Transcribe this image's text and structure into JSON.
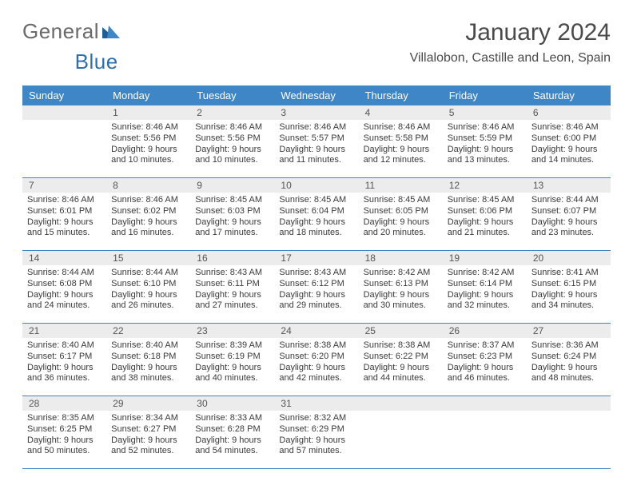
{
  "logo": {
    "word1": "General",
    "word2": "Blue"
  },
  "header": {
    "month_title": "January 2024",
    "location": "Villalobon, Castille and Leon, Spain"
  },
  "style": {
    "header_bg": "#3f86c6",
    "header_fg": "#ffffff",
    "daynum_bg": "#ececec",
    "rule_color": "#3f86c6",
    "logo_gray": "#6a6a6a",
    "logo_blue": "#2f6fab",
    "text_color": "#3a3a3a",
    "page_bg": "#ffffff"
  },
  "weekdays": [
    "Sunday",
    "Monday",
    "Tuesday",
    "Wednesday",
    "Thursday",
    "Friday",
    "Saturday"
  ],
  "weeks": [
    {
      "nums": [
        "",
        "1",
        "2",
        "3",
        "4",
        "5",
        "6"
      ],
      "cells": [
        null,
        {
          "sr": "Sunrise: 8:46 AM",
          "ss": "Sunset: 5:56 PM",
          "d1": "Daylight: 9 hours",
          "d2": "and 10 minutes."
        },
        {
          "sr": "Sunrise: 8:46 AM",
          "ss": "Sunset: 5:56 PM",
          "d1": "Daylight: 9 hours",
          "d2": "and 10 minutes."
        },
        {
          "sr": "Sunrise: 8:46 AM",
          "ss": "Sunset: 5:57 PM",
          "d1": "Daylight: 9 hours",
          "d2": "and 11 minutes."
        },
        {
          "sr": "Sunrise: 8:46 AM",
          "ss": "Sunset: 5:58 PM",
          "d1": "Daylight: 9 hours",
          "d2": "and 12 minutes."
        },
        {
          "sr": "Sunrise: 8:46 AM",
          "ss": "Sunset: 5:59 PM",
          "d1": "Daylight: 9 hours",
          "d2": "and 13 minutes."
        },
        {
          "sr": "Sunrise: 8:46 AM",
          "ss": "Sunset: 6:00 PM",
          "d1": "Daylight: 9 hours",
          "d2": "and 14 minutes."
        }
      ]
    },
    {
      "nums": [
        "7",
        "8",
        "9",
        "10",
        "11",
        "12",
        "13"
      ],
      "cells": [
        {
          "sr": "Sunrise: 8:46 AM",
          "ss": "Sunset: 6:01 PM",
          "d1": "Daylight: 9 hours",
          "d2": "and 15 minutes."
        },
        {
          "sr": "Sunrise: 8:46 AM",
          "ss": "Sunset: 6:02 PM",
          "d1": "Daylight: 9 hours",
          "d2": "and 16 minutes."
        },
        {
          "sr": "Sunrise: 8:45 AM",
          "ss": "Sunset: 6:03 PM",
          "d1": "Daylight: 9 hours",
          "d2": "and 17 minutes."
        },
        {
          "sr": "Sunrise: 8:45 AM",
          "ss": "Sunset: 6:04 PM",
          "d1": "Daylight: 9 hours",
          "d2": "and 18 minutes."
        },
        {
          "sr": "Sunrise: 8:45 AM",
          "ss": "Sunset: 6:05 PM",
          "d1": "Daylight: 9 hours",
          "d2": "and 20 minutes."
        },
        {
          "sr": "Sunrise: 8:45 AM",
          "ss": "Sunset: 6:06 PM",
          "d1": "Daylight: 9 hours",
          "d2": "and 21 minutes."
        },
        {
          "sr": "Sunrise: 8:44 AM",
          "ss": "Sunset: 6:07 PM",
          "d1": "Daylight: 9 hours",
          "d2": "and 23 minutes."
        }
      ]
    },
    {
      "nums": [
        "14",
        "15",
        "16",
        "17",
        "18",
        "19",
        "20"
      ],
      "cells": [
        {
          "sr": "Sunrise: 8:44 AM",
          "ss": "Sunset: 6:08 PM",
          "d1": "Daylight: 9 hours",
          "d2": "and 24 minutes."
        },
        {
          "sr": "Sunrise: 8:44 AM",
          "ss": "Sunset: 6:10 PM",
          "d1": "Daylight: 9 hours",
          "d2": "and 26 minutes."
        },
        {
          "sr": "Sunrise: 8:43 AM",
          "ss": "Sunset: 6:11 PM",
          "d1": "Daylight: 9 hours",
          "d2": "and 27 minutes."
        },
        {
          "sr": "Sunrise: 8:43 AM",
          "ss": "Sunset: 6:12 PM",
          "d1": "Daylight: 9 hours",
          "d2": "and 29 minutes."
        },
        {
          "sr": "Sunrise: 8:42 AM",
          "ss": "Sunset: 6:13 PM",
          "d1": "Daylight: 9 hours",
          "d2": "and 30 minutes."
        },
        {
          "sr": "Sunrise: 8:42 AM",
          "ss": "Sunset: 6:14 PM",
          "d1": "Daylight: 9 hours",
          "d2": "and 32 minutes."
        },
        {
          "sr": "Sunrise: 8:41 AM",
          "ss": "Sunset: 6:15 PM",
          "d1": "Daylight: 9 hours",
          "d2": "and 34 minutes."
        }
      ]
    },
    {
      "nums": [
        "21",
        "22",
        "23",
        "24",
        "25",
        "26",
        "27"
      ],
      "cells": [
        {
          "sr": "Sunrise: 8:40 AM",
          "ss": "Sunset: 6:17 PM",
          "d1": "Daylight: 9 hours",
          "d2": "and 36 minutes."
        },
        {
          "sr": "Sunrise: 8:40 AM",
          "ss": "Sunset: 6:18 PM",
          "d1": "Daylight: 9 hours",
          "d2": "and 38 minutes."
        },
        {
          "sr": "Sunrise: 8:39 AM",
          "ss": "Sunset: 6:19 PM",
          "d1": "Daylight: 9 hours",
          "d2": "and 40 minutes."
        },
        {
          "sr": "Sunrise: 8:38 AM",
          "ss": "Sunset: 6:20 PM",
          "d1": "Daylight: 9 hours",
          "d2": "and 42 minutes."
        },
        {
          "sr": "Sunrise: 8:38 AM",
          "ss": "Sunset: 6:22 PM",
          "d1": "Daylight: 9 hours",
          "d2": "and 44 minutes."
        },
        {
          "sr": "Sunrise: 8:37 AM",
          "ss": "Sunset: 6:23 PM",
          "d1": "Daylight: 9 hours",
          "d2": "and 46 minutes."
        },
        {
          "sr": "Sunrise: 8:36 AM",
          "ss": "Sunset: 6:24 PM",
          "d1": "Daylight: 9 hours",
          "d2": "and 48 minutes."
        }
      ]
    },
    {
      "nums": [
        "28",
        "29",
        "30",
        "31",
        "",
        "",
        ""
      ],
      "cells": [
        {
          "sr": "Sunrise: 8:35 AM",
          "ss": "Sunset: 6:25 PM",
          "d1": "Daylight: 9 hours",
          "d2": "and 50 minutes."
        },
        {
          "sr": "Sunrise: 8:34 AM",
          "ss": "Sunset: 6:27 PM",
          "d1": "Daylight: 9 hours",
          "d2": "and 52 minutes."
        },
        {
          "sr": "Sunrise: 8:33 AM",
          "ss": "Sunset: 6:28 PM",
          "d1": "Daylight: 9 hours",
          "d2": "and 54 minutes."
        },
        {
          "sr": "Sunrise: 8:32 AM",
          "ss": "Sunset: 6:29 PM",
          "d1": "Daylight: 9 hours",
          "d2": "and 57 minutes."
        },
        null,
        null,
        null
      ]
    }
  ]
}
